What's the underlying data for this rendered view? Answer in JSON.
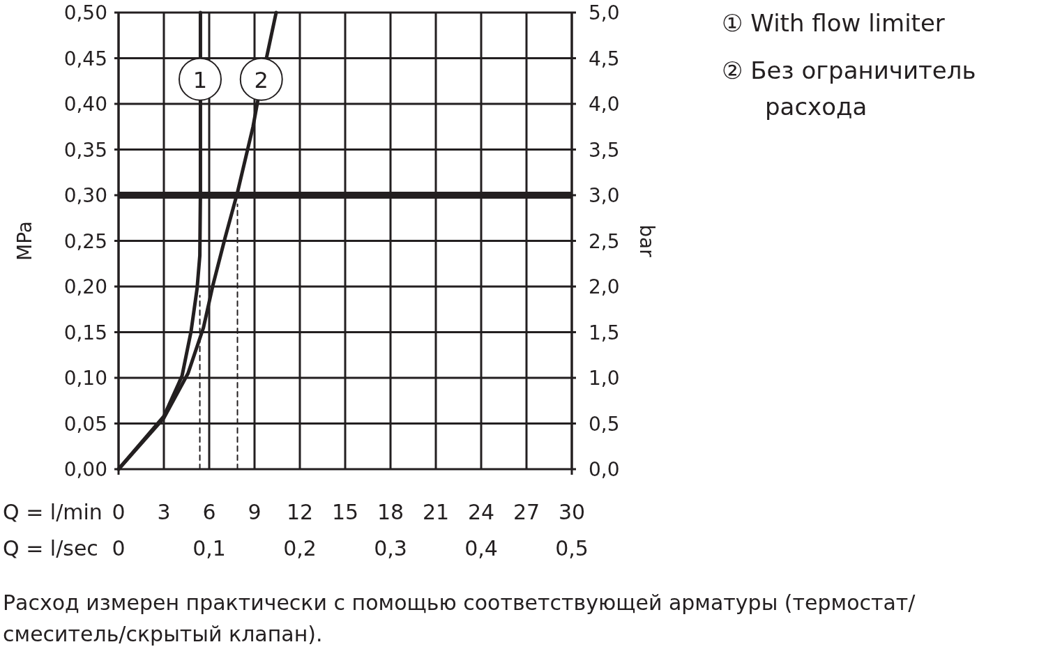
{
  "chart_data": {
    "type": "line",
    "xlabel": "Q = l/min",
    "ylabel": "MPa",
    "y2label": "bar",
    "x2label": "Q = l/sec",
    "xlim": [
      0,
      30
    ],
    "xticks": [
      0,
      3,
      6,
      9,
      12,
      15,
      18,
      21,
      24,
      27,
      30
    ],
    "x2lim": [
      0,
      0.5
    ],
    "x2ticks": [
      0,
      {
        "value": 0.1,
        "label": "0,1"
      },
      {
        "value": 0.2,
        "label": "0,2"
      },
      {
        "value": 0.3,
        "label": "0,3"
      },
      {
        "value": 0.4,
        "label": "0,4"
      },
      {
        "value": 0.5,
        "label": "0,5"
      }
    ],
    "ylim": [
      0,
      0.5
    ],
    "yticks": [
      {
        "value": 0,
        "label": "0,00"
      },
      {
        "value": 0.05,
        "label": "0,05"
      },
      {
        "value": 0.1,
        "label": "0,10"
      },
      {
        "value": 0.15,
        "label": "0,15"
      },
      {
        "value": 0.2,
        "label": "0,20"
      },
      {
        "value": 0.25,
        "label": "0,25"
      },
      {
        "value": 0.3,
        "label": "0,30"
      },
      {
        "value": 0.35,
        "label": "0,35"
      },
      {
        "value": 0.4,
        "label": "0,40"
      },
      {
        "value": 0.45,
        "label": "0,45"
      },
      {
        "value": 0.5,
        "label": "0,50"
      }
    ],
    "y2lim": [
      0,
      5
    ],
    "y2ticks": [
      {
        "value": 0,
        "label": "0,0"
      },
      {
        "value": 0.5,
        "label": "0,5"
      },
      {
        "value": 1,
        "label": "1,0"
      },
      {
        "value": 1.5,
        "label": "1,5"
      },
      {
        "value": 2,
        "label": "2,0"
      },
      {
        "value": 2.5,
        "label": "2,5"
      },
      {
        "value": 3,
        "label": "3,0"
      },
      {
        "value": 3.5,
        "label": "3,5"
      },
      {
        "value": 4,
        "label": "4,0"
      },
      {
        "value": 4.5,
        "label": "4,5"
      },
      {
        "value": 5,
        "label": "5,0"
      }
    ],
    "grid": true,
    "legend": "right",
    "series": [
      {
        "name": "① With flow limiter",
        "color": "#231f20",
        "x": [
          0,
          3,
          4.2,
          4.8,
          5.2,
          5.38,
          5.42,
          5.42
        ],
        "values": [
          0,
          0.058,
          0.102,
          0.151,
          0.198,
          0.234,
          0.303,
          0.5
        ]
      },
      {
        "name": "② Без ограничитель расхода",
        "color": "#231f20",
        "x": [
          0,
          3,
          4.6,
          5.62,
          6.24,
          7.06,
          7.87,
          8.9,
          9.2,
          9.8,
          10.43
        ],
        "values": [
          0,
          0.056,
          0.105,
          0.155,
          0.201,
          0.254,
          0.303,
          0.375,
          0.402,
          0.451,
          0.5
        ]
      },
      {
        "color": "#231f20",
        "line_style": "dashed",
        "x": [
          5.38,
          5.38
        ],
        "values": [
          0,
          0.19
        ]
      },
      {
        "color": "#231f20",
        "line_style": "dashed",
        "x": [
          7.87,
          7.87
        ],
        "values": [
          0,
          0.29
        ]
      }
    ],
    "ref_lines": [
      {
        "axis": "y",
        "value": 0.3,
        "color": "#231f20"
      }
    ],
    "annotations": [
      {
        "text": "1",
        "x": 5.4,
        "y": 0.427
      },
      {
        "text": "2",
        "x": 9.45,
        "y": 0.427
      },
      "Расход измерен практически с помощью соответствующей арматуры (термостат/ смеситель/скрытый клапан)."
    ]
  }
}
